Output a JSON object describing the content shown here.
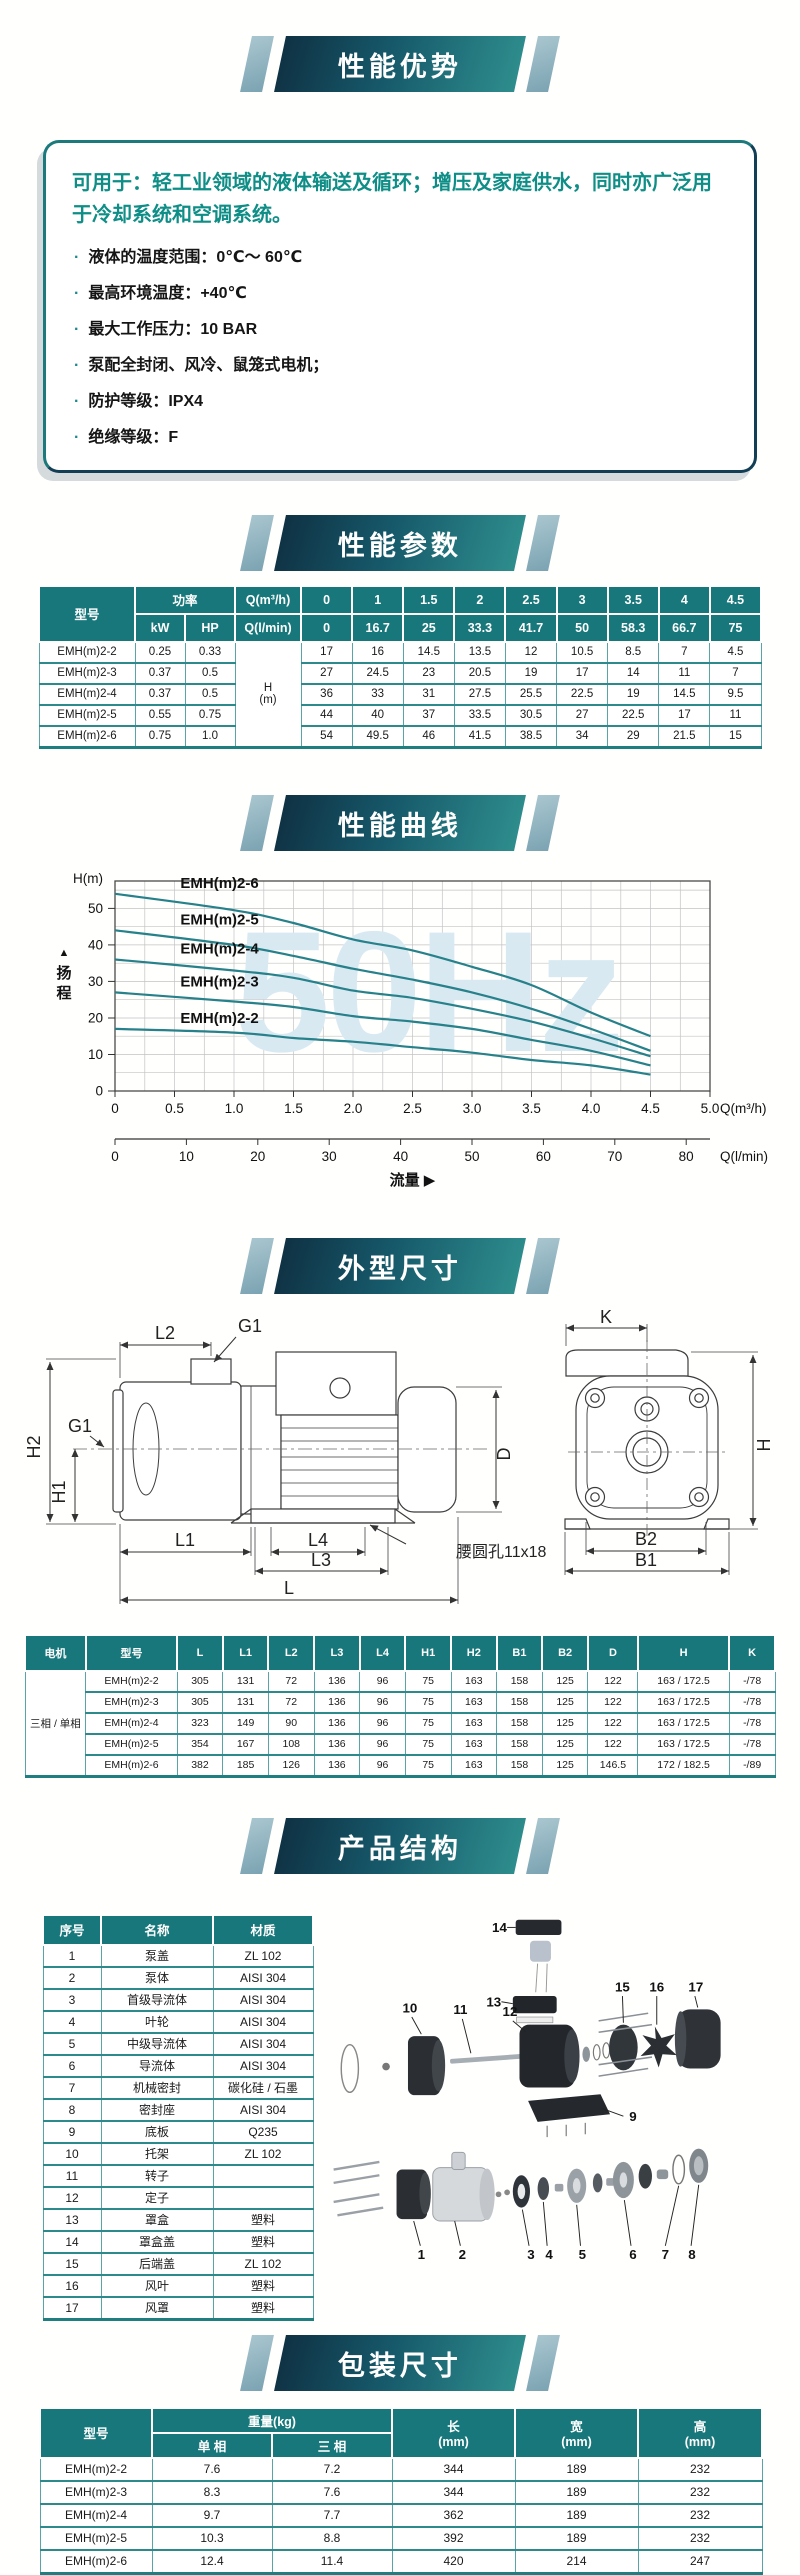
{
  "banners": {
    "advantages": "性能优势",
    "parameters": "性能参数",
    "curves": "性能曲线",
    "dimensions": "外型尺寸",
    "structure": "产品结构",
    "packaging": "包装尺寸"
  },
  "features": {
    "bullet": "·",
    "intro": "可用于：轻工业领域的液体输送及循环；增压及家庭供水，同时亦广泛用于冷却系统和空调系统。",
    "items": [
      "液体的温度范围：0℃～ 60℃",
      "最高环境温度：+40℃",
      "最大工作压力：10 BAR",
      "泵配全封闭、风冷、鼠笼式电机；",
      "防护等级：IPX4",
      "绝缘等级：F"
    ]
  },
  "perf_table": {
    "col_model": "型号",
    "col_power": "功率",
    "col_kw": "kW",
    "col_hp": "HP",
    "col_qm3": "Q(m³/h)",
    "col_qlmin": "Q(l/min)",
    "col_head": "H\n(m)",
    "q_m3h": [
      "0",
      "1",
      "1.5",
      "2",
      "2.5",
      "3",
      "3.5",
      "4",
      "4.5"
    ],
    "q_lmin": [
      "0",
      "16.7",
      "25",
      "33.3",
      "41.7",
      "50",
      "58.3",
      "66.7",
      "75"
    ],
    "rows": [
      {
        "model": "EMH(m)2-2",
        "kw": "0.25",
        "hp": "0.33",
        "h": [
          "17",
          "16",
          "14.5",
          "13.5",
          "12",
          "10.5",
          "8.5",
          "7",
          "4.5"
        ]
      },
      {
        "model": "EMH(m)2-3",
        "kw": "0.37",
        "hp": "0.5",
        "h": [
          "27",
          "24.5",
          "23",
          "20.5",
          "19",
          "17",
          "14",
          "11",
          "7"
        ]
      },
      {
        "model": "EMH(m)2-4",
        "kw": "0.37",
        "hp": "0.5",
        "h": [
          "36",
          "33",
          "31",
          "27.5",
          "25.5",
          "22.5",
          "19",
          "14.5",
          "9.5"
        ]
      },
      {
        "model": "EMH(m)2-5",
        "kw": "0.55",
        "hp": "0.75",
        "h": [
          "44",
          "40",
          "37",
          "33.5",
          "30.5",
          "27",
          "22.5",
          "17",
          "11"
        ]
      },
      {
        "model": "EMH(m)2-6",
        "kw": "0.75",
        "hp": "1.0",
        "h": [
          "54",
          "49.5",
          "46",
          "41.5",
          "38.5",
          "34",
          "29",
          "21.5",
          "15"
        ]
      }
    ]
  },
  "chart_data": {
    "type": "line",
    "watermark": "50Hz",
    "ylabel": "扬程",
    "ylabel_arrow": "▲",
    "xlabel": "流量",
    "xlabel_arrow": "▶",
    "y_axis_unit": "H(m)",
    "x_axis_unit": "Q(m³/h)",
    "x2_axis_unit": "Q(l/min)",
    "ylim": [
      0,
      57.5
    ],
    "xlim": [
      0,
      5
    ],
    "grid": true,
    "legend_position": "inline-left",
    "y_ticks": [
      0,
      10,
      20,
      30,
      40,
      50
    ],
    "x_ticks": [
      "0",
      "0.5",
      "1.0",
      "1.5",
      "2.0",
      "2.5",
      "3.0",
      "3.5",
      "4.0",
      "4.5",
      "5.0"
    ],
    "x2_ticks": [
      0,
      10,
      20,
      30,
      40,
      50,
      60,
      70,
      80
    ],
    "x": [
      0,
      1,
      1.5,
      2,
      2.5,
      3,
      3.5,
      4,
      4.5
    ],
    "series": [
      {
        "name": "EMH(m)2-6",
        "values": [
          54,
          49.5,
          46,
          41.5,
          38.5,
          34,
          29,
          21.5,
          15
        ]
      },
      {
        "name": "EMH(m)2-5",
        "values": [
          44,
          40,
          37,
          33.5,
          30.5,
          27,
          22.5,
          17,
          11
        ]
      },
      {
        "name": "EMH(m)2-4",
        "values": [
          36,
          33,
          31,
          27.5,
          25.5,
          22.5,
          19,
          14.5,
          9.5
        ]
      },
      {
        "name": "EMH(m)2-3",
        "values": [
          27,
          24.5,
          23,
          20.5,
          19,
          17,
          14,
          11,
          7
        ]
      },
      {
        "name": "EMH(m)2-2",
        "values": [
          17,
          16,
          14.5,
          13.5,
          12,
          10.5,
          8.5,
          7,
          4.5
        ]
      }
    ]
  },
  "dims": {
    "side_labels": {
      "L2": "L2",
      "G1t": "G1",
      "H2": "H2",
      "G1l": "G1",
      "H1": "H1",
      "L1": "L1",
      "L4": "L4",
      "L3": "L3",
      "L": "L",
      "D": "D",
      "note": "腰圆孔11x18"
    },
    "end_labels": {
      "K": "K",
      "H": "H",
      "B2": "B2",
      "B1": "B1"
    },
    "table": {
      "headers": [
        "电机",
        "型号",
        "L",
        "L1",
        "L2",
        "L3",
        "L4",
        "H1",
        "H2",
        "B1",
        "B2",
        "D",
        "H",
        "K"
      ],
      "motor": "三相 / 单相",
      "rows": [
        [
          "EMH(m)2-2",
          "305",
          "131",
          "72",
          "136",
          "96",
          "75",
          "163",
          "158",
          "125",
          "122",
          "163 / 172.5",
          "-/78"
        ],
        [
          "EMH(m)2-3",
          "305",
          "131",
          "72",
          "136",
          "96",
          "75",
          "163",
          "158",
          "125",
          "122",
          "163 / 172.5",
          "-/78"
        ],
        [
          "EMH(m)2-4",
          "323",
          "149",
          "90",
          "136",
          "96",
          "75",
          "163",
          "158",
          "125",
          "122",
          "163 / 172.5",
          "-/78"
        ],
        [
          "EMH(m)2-5",
          "354",
          "167",
          "108",
          "136",
          "96",
          "75",
          "163",
          "158",
          "125",
          "122",
          "163 / 172.5",
          "-/78"
        ],
        [
          "EMH(m)2-6",
          "382",
          "185",
          "126",
          "136",
          "96",
          "75",
          "163",
          "158",
          "125",
          "146.5",
          "172 / 182.5",
          "-/89"
        ]
      ]
    }
  },
  "structure": {
    "headers": [
      "序号",
      "名称",
      "材质"
    ],
    "rows": [
      [
        "1",
        "泵盖",
        "ZL 102"
      ],
      [
        "2",
        "泵体",
        "AISI 304"
      ],
      [
        "3",
        "首级导流体",
        "AISI 304"
      ],
      [
        "4",
        "叶轮",
        "AISI 304"
      ],
      [
        "5",
        "中级导流体",
        "AISI 304"
      ],
      [
        "6",
        "导流体",
        "AISI 304"
      ],
      [
        "7",
        "机械密封",
        "碳化硅 / 石墨"
      ],
      [
        "8",
        "密封座",
        "AISI 304"
      ],
      [
        "9",
        "底板",
        "Q235"
      ],
      [
        "10",
        "托架",
        "ZL 102"
      ],
      [
        "11",
        "转子",
        ""
      ],
      [
        "12",
        "定子",
        ""
      ],
      [
        "13",
        "罩盒",
        "塑料"
      ],
      [
        "14",
        "罩盒盖",
        "塑料"
      ],
      [
        "15",
        "后端盖",
        "ZL 102"
      ],
      [
        "16",
        "风叶",
        "塑料"
      ],
      [
        "17",
        "风罩",
        "塑料"
      ]
    ],
    "callouts_top": [
      "14",
      "13",
      "12",
      "11",
      "10",
      "15",
      "16",
      "17",
      "9"
    ],
    "callouts_bottom": [
      "1",
      "2",
      "3",
      "4",
      "5",
      "6",
      "7",
      "8"
    ]
  },
  "packaging": {
    "col_model": "型号",
    "col_weight": "重量(kg)",
    "col_single": "单 相",
    "col_three": "三 相",
    "col_len": "长\n(mm)",
    "col_wid": "宽\n(mm)",
    "col_hgt": "高\n(mm)",
    "rows": [
      [
        "EMH(m)2-2",
        "7.6",
        "7.2",
        "344",
        "189",
        "232"
      ],
      [
        "EMH(m)2-3",
        "8.3",
        "7.6",
        "344",
        "189",
        "232"
      ],
      [
        "EMH(m)2-4",
        "9.7",
        "7.7",
        "362",
        "189",
        "232"
      ],
      [
        "EMH(m)2-5",
        "10.3",
        "8.8",
        "392",
        "189",
        "232"
      ],
      [
        "EMH(m)2-6",
        "12.4",
        "11.4",
        "420",
        "214",
        "247"
      ]
    ]
  },
  "colors": {
    "header_teal": "#17777b",
    "curve_teal": "#26818a",
    "banner_dark": "#0f3244",
    "banner_teal": "#2e8d8d",
    "watermark": "#d9e9f2",
    "rule_teal": "#2d8a8c"
  }
}
